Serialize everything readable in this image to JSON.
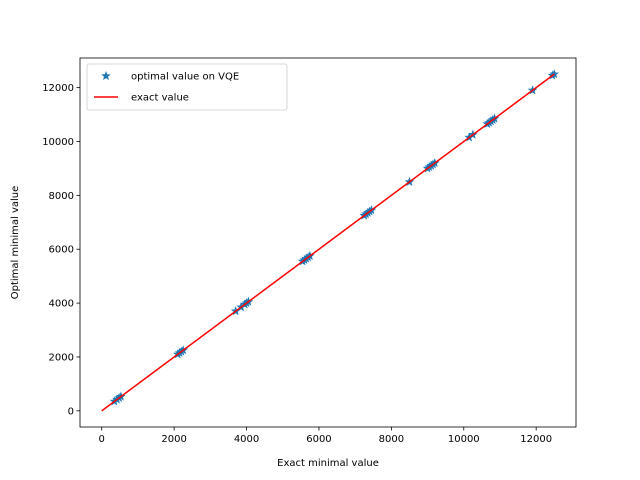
{
  "chart_data": {
    "type": "scatter",
    "xlabel": "Exact minimal value",
    "ylabel": "Optimal minimal value",
    "xlim": [
      -600,
      13100
    ],
    "ylim": [
      -600,
      13100
    ],
    "x_ticks": [
      0,
      2000,
      4000,
      6000,
      8000,
      10000,
      12000
    ],
    "y_ticks": [
      0,
      2000,
      4000,
      6000,
      8000,
      10000,
      12000
    ],
    "grid": false,
    "legend_position": "top-left",
    "series": [
      {
        "name": "optimal value on VQE",
        "kind": "scatter",
        "marker": "star",
        "color": "#1f77b4",
        "points": [
          [
            350,
            350
          ],
          [
            420,
            420
          ],
          [
            480,
            480
          ],
          [
            530,
            530
          ],
          [
            2100,
            2100
          ],
          [
            2150,
            2150
          ],
          [
            2200,
            2200
          ],
          [
            2250,
            2250
          ],
          [
            3700,
            3700
          ],
          [
            3850,
            3850
          ],
          [
            3950,
            3950
          ],
          [
            4000,
            4000
          ],
          [
            4050,
            4050
          ],
          [
            5550,
            5550
          ],
          [
            5600,
            5600
          ],
          [
            5650,
            5650
          ],
          [
            5700,
            5700
          ],
          [
            5750,
            5750
          ],
          [
            7250,
            7250
          ],
          [
            7300,
            7300
          ],
          [
            7350,
            7350
          ],
          [
            7400,
            7400
          ],
          [
            7450,
            7450
          ],
          [
            8500,
            8500
          ],
          [
            9000,
            9000
          ],
          [
            9050,
            9050
          ],
          [
            9100,
            9100
          ],
          [
            9150,
            9150
          ],
          [
            9200,
            9200
          ],
          [
            10150,
            10150
          ],
          [
            10250,
            10250
          ],
          [
            10650,
            10650
          ],
          [
            10700,
            10700
          ],
          [
            10750,
            10750
          ],
          [
            10800,
            10800
          ],
          [
            10850,
            10850
          ],
          [
            11900,
            11900
          ],
          [
            12450,
            12450
          ],
          [
            12500,
            12500
          ]
        ]
      },
      {
        "name": "exact value",
        "kind": "line",
        "color": "#ff0000",
        "points": [
          [
            0,
            0
          ],
          [
            12500,
            12500
          ]
        ]
      }
    ]
  }
}
